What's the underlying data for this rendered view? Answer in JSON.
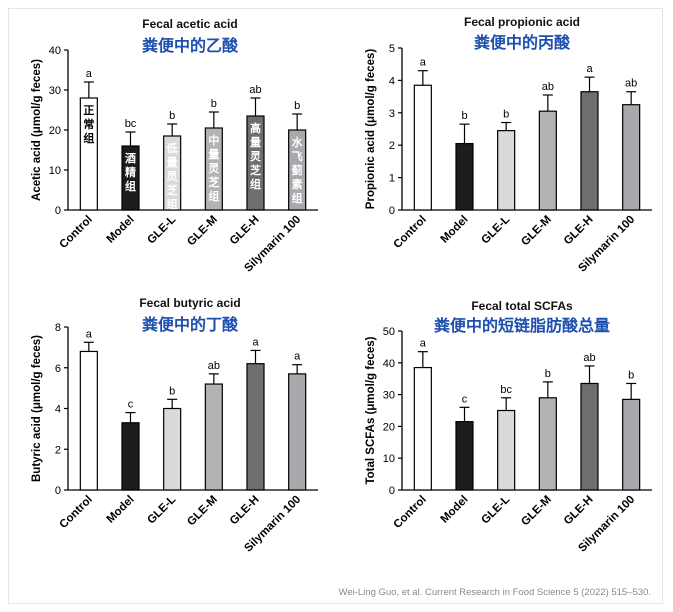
{
  "citation": "Wei-Ling Guo, et al. Current Research in Food Science 5 (2022) 515–530.",
  "colors": {
    "bars": [
      "#ffffff",
      "#1c1c1c",
      "#d9d9d9",
      "#b3b3b3",
      "#6e6e6e",
      "#a9a9ad"
    ],
    "chinese_title": "#1d4fae"
  },
  "chart_data": [
    {
      "type": "bar",
      "title": "Fecal acetic acid",
      "subtitle": "粪便中的乙酸",
      "ylabel": "Acetic acid (μmol/g feces)",
      "ylim": [
        0,
        40
      ],
      "yticks": [
        0,
        10,
        20,
        30,
        40
      ],
      "categories": [
        "Control",
        "Model",
        "GLE-L",
        "GLE-M",
        "GLE-H",
        "Silymarin 100"
      ],
      "values": [
        28,
        16,
        18.5,
        20.5,
        23.5,
        20
      ],
      "errors": [
        4,
        3.5,
        3,
        4,
        4.5,
        4
      ],
      "letters": [
        "a",
        "bc",
        "b",
        "b",
        "ab",
        "b"
      ],
      "bar_labels": [
        "正常组",
        "酒精组",
        "低量灵芝组",
        "中量灵芝组",
        "高量灵芝组",
        "水飞蓟素组"
      ]
    },
    {
      "type": "bar",
      "title": "Fecal propionic acid",
      "subtitle": "粪便中的丙酸",
      "ylabel": "Propionic acid (μmol/g feces)",
      "ylim": [
        0,
        5
      ],
      "yticks": [
        0,
        1,
        2,
        3,
        4,
        5
      ],
      "categories": [
        "Control",
        "Model",
        "GLE-L",
        "GLE-M",
        "GLE-H",
        "Silymarin 100"
      ],
      "values": [
        3.85,
        2.05,
        2.45,
        3.05,
        3.65,
        3.25
      ],
      "errors": [
        0.45,
        0.6,
        0.25,
        0.5,
        0.45,
        0.4
      ],
      "letters": [
        "a",
        "b",
        "b",
        "ab",
        "a",
        "ab"
      ]
    },
    {
      "type": "bar",
      "title": "Fecal butyric acid",
      "subtitle": "粪便中的丁酸",
      "ylabel": "Butyric acid (μmol/g feces)",
      "ylim": [
        0,
        8
      ],
      "yticks": [
        0,
        2,
        4,
        6,
        8
      ],
      "categories": [
        "Control",
        "Model",
        "GLE-L",
        "GLE-M",
        "GLE-H",
        "Silymarin 100"
      ],
      "values": [
        6.8,
        3.3,
        4.0,
        5.2,
        6.2,
        5.7
      ],
      "errors": [
        0.45,
        0.5,
        0.45,
        0.5,
        0.65,
        0.45
      ],
      "letters": [
        "a",
        "c",
        "b",
        "ab",
        "a",
        "a"
      ]
    },
    {
      "type": "bar",
      "title": "Fecal total SCFAs",
      "subtitle": "粪便中的短链脂肪酸总量",
      "ylabel": "Total SCFAs (μmol/g feces)",
      "ylim": [
        0,
        50
      ],
      "yticks": [
        0,
        10,
        20,
        30,
        40,
        50
      ],
      "categories": [
        "Control",
        "Model",
        "GLE-L",
        "GLE-M",
        "GLE-H",
        "Silymarin 100"
      ],
      "values": [
        38.5,
        21.5,
        25,
        29,
        33.5,
        28.5
      ],
      "errors": [
        5,
        4.5,
        4,
        5,
        5.5,
        5
      ],
      "letters": [
        "a",
        "c",
        "bc",
        "b",
        "ab",
        "b"
      ]
    }
  ]
}
